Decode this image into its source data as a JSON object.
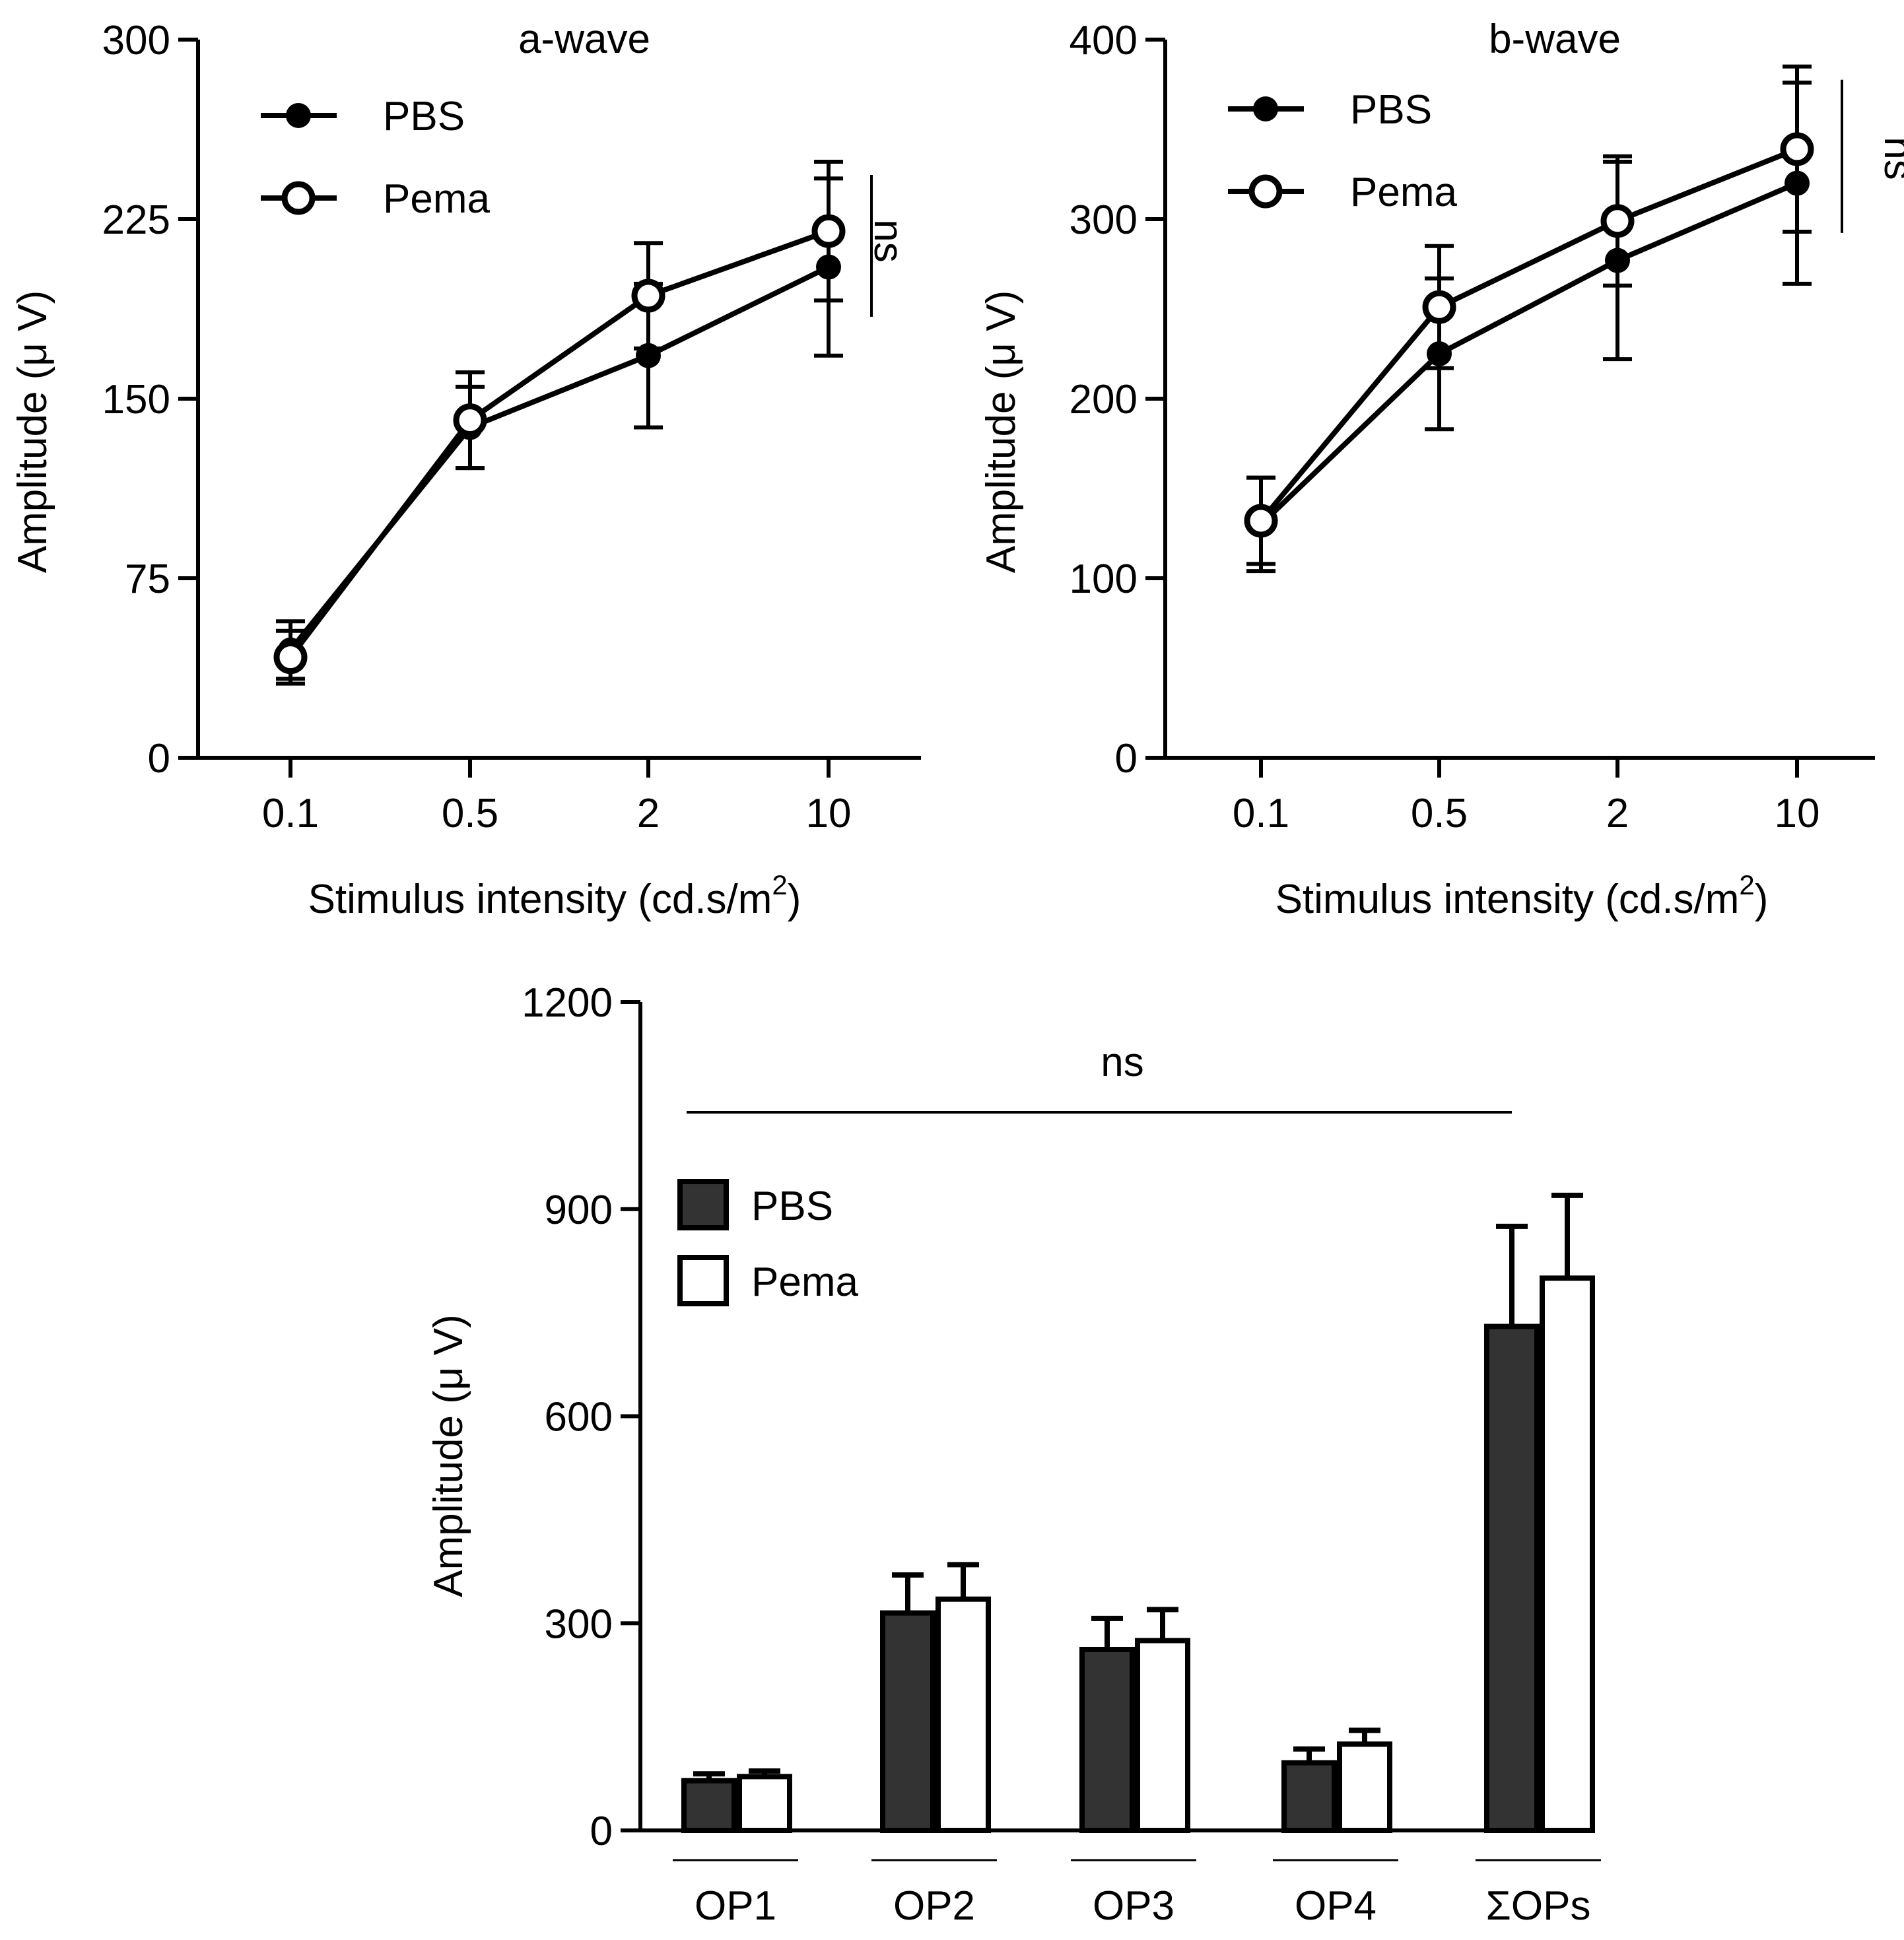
{
  "chart_data": [
    {
      "id": "a_wave",
      "type": "line",
      "title": "a-wave",
      "xlabel": "Stimulus intensity (cd.s/m",
      "xlabel_sup": "2",
      "xlabel_end": ")",
      "ylabel": "Amplitude (μ V)",
      "categories": [
        "0.1",
        "0.5",
        "2",
        "10"
      ],
      "ylim": [
        0,
        300
      ],
      "yticks": [
        0,
        75,
        150,
        225,
        300
      ],
      "series": [
        {
          "name": "PBS",
          "marker": "filled",
          "values": [
            45,
            138,
            168,
            205
          ],
          "err": [
            12,
            17,
            30,
            37
          ]
        },
        {
          "name": "Pema",
          "marker": "open",
          "values": [
            42,
            141,
            193,
            220
          ],
          "err": [
            11,
            20,
            22,
            29
          ]
        }
      ],
      "annotation": "ns",
      "legend": "top-left"
    },
    {
      "id": "b_wave",
      "type": "line",
      "title": "b-wave",
      "xlabel": "Stimulus intensity (cd.s/m",
      "xlabel_sup": "2",
      "xlabel_end": ")",
      "ylabel": "Amplitude (μ V)",
      "categories": [
        "0.1",
        "0.5",
        "2",
        "10"
      ],
      "ylim": [
        0,
        400
      ],
      "yticks": [
        0,
        100,
        200,
        300,
        400
      ],
      "series": [
        {
          "name": "PBS",
          "marker": "filled",
          "values": [
            130,
            225,
            277,
            320
          ],
          "err": [
            26,
            42,
            55,
            56
          ]
        },
        {
          "name": "Pema",
          "marker": "open",
          "values": [
            132,
            251,
            299,
            339
          ],
          "err": [
            24,
            34,
            36,
            46
          ]
        }
      ],
      "annotation": "ns",
      "legend": "top-left"
    },
    {
      "id": "ops",
      "type": "bar",
      "title": "",
      "xlabel": "",
      "ylabel": "Amplitude (μ V)",
      "categories": [
        "OP1",
        "OP2",
        "OP3",
        "OP4",
        "ΣOPs"
      ],
      "ylim": [
        0,
        1200
      ],
      "yticks": [
        0,
        300,
        600,
        900,
        1200
      ],
      "series": [
        {
          "name": "PBS",
          "fill": "dark",
          "values": [
            72,
            315,
            262,
            98,
            730
          ],
          "err": [
            10,
            55,
            45,
            20,
            145
          ]
        },
        {
          "name": "Pema",
          "fill": "white",
          "values": [
            78,
            335,
            275,
            125,
            800
          ],
          "err": [
            8,
            50,
            45,
            20,
            120
          ]
        }
      ],
      "annotation": "ns",
      "legend": "top-left"
    }
  ]
}
